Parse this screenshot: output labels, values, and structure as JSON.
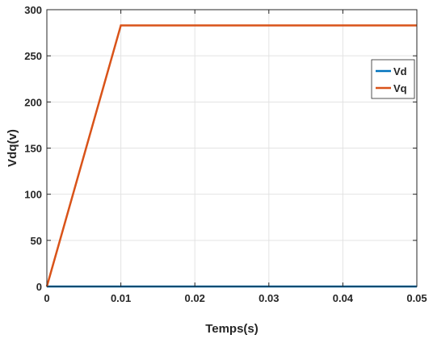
{
  "chart_data": {
    "type": "line",
    "xlabel": "Temps(s)",
    "ylabel": "Vdq(v)",
    "xlim": [
      0,
      0.05
    ],
    "ylim": [
      0,
      300
    ],
    "xticks": [
      0,
      0.01,
      0.02,
      0.03,
      0.04,
      0.05
    ],
    "xtick_labels": [
      "0",
      "0.01",
      "0.02",
      "0.03",
      "0.04",
      "0.05"
    ],
    "yticks": [
      0,
      50,
      100,
      150,
      200,
      250,
      300
    ],
    "ytick_labels": [
      "0",
      "50",
      "100",
      "150",
      "200",
      "250",
      "300"
    ],
    "grid": true,
    "legend_position": "right",
    "series": [
      {
        "name": "Vd",
        "color": "#0072BD",
        "x": [
          0,
          0.05
        ],
        "y": [
          0,
          0
        ]
      },
      {
        "name": "Vq",
        "color": "#D95319",
        "x": [
          0,
          0.01,
          0.05
        ],
        "y": [
          0,
          283,
          283
        ]
      }
    ]
  }
}
